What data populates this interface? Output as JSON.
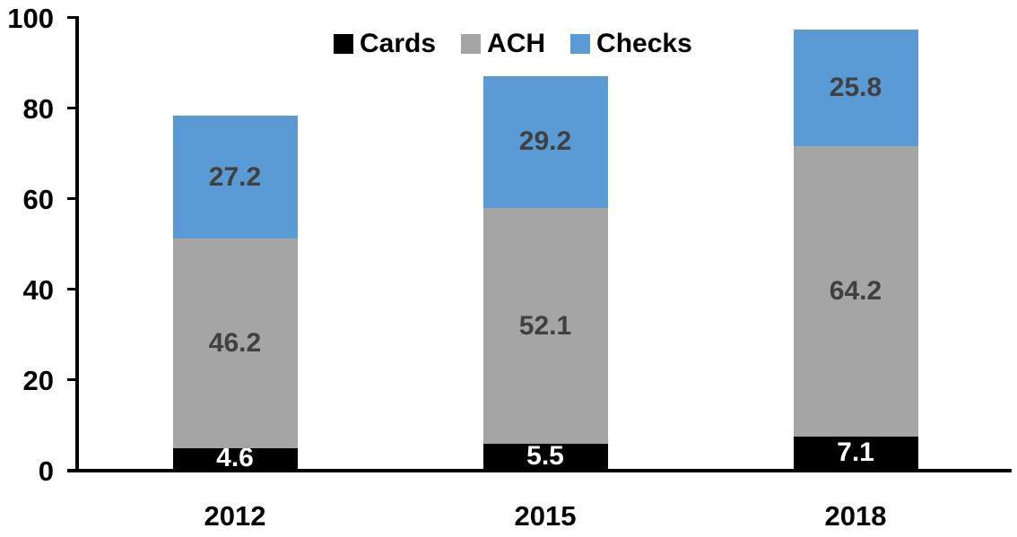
{
  "chart_data": {
    "type": "bar",
    "stacked": true,
    "title": "",
    "xlabel": "",
    "ylabel": "",
    "categories": [
      "2012",
      "2015",
      "2018"
    ],
    "series": [
      {
        "name": "Cards",
        "color": "#000000",
        "label_color": "#FFFFFF",
        "values": [
          4.6,
          5.5,
          7.1
        ]
      },
      {
        "name": "ACH",
        "color": "#A5A5A5",
        "label_color": "#404040",
        "values": [
          46.2,
          52.1,
          64.2
        ]
      },
      {
        "name": "Checks",
        "color": "#5B9BD5",
        "label_color": "#404040",
        "values": [
          27.2,
          29.2,
          25.8
        ]
      }
    ],
    "totals": [
      78.0,
      86.8,
      97.1
    ],
    "ylim": [
      0,
      100
    ],
    "yticks": [
      0,
      20,
      40,
      60,
      80,
      100
    ],
    "legend_position": "top",
    "grid": false
  },
  "legend": {
    "items": [
      {
        "label": "Cards",
        "color": "#000000"
      },
      {
        "label": "ACH",
        "color": "#A5A5A5"
      },
      {
        "label": "Checks",
        "color": "#5B9BD5"
      }
    ]
  }
}
